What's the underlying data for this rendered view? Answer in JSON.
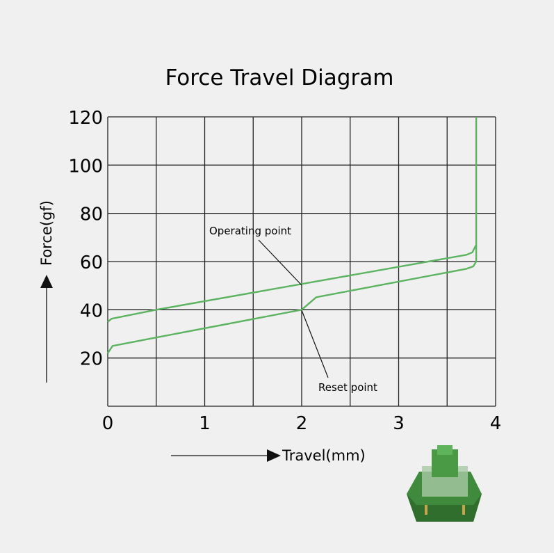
{
  "chart_data": {
    "type": "line",
    "title": "Force Travel Diagram",
    "xlabel": "Travel(mm)",
    "ylabel": "Force(gf)",
    "xlim": [
      0,
      4
    ],
    "ylim": [
      0,
      120
    ],
    "x_ticks": [
      0,
      1,
      2,
      3,
      4
    ],
    "y_ticks": [
      20,
      40,
      60,
      80,
      100,
      120
    ],
    "grid": true,
    "grid_x_step": 0.5,
    "grid_y_step": 20,
    "line_color": "#5cb360",
    "series": [
      {
        "points": [
          [
            0,
            35
          ],
          [
            0.04,
            36.3
          ],
          [
            0.5,
            40
          ],
          [
            3.7,
            62.8
          ],
          [
            3.76,
            63.8
          ],
          [
            3.8,
            67
          ],
          [
            3.8,
            120
          ]
        ]
      },
      {
        "points": [
          [
            0,
            22
          ],
          [
            0.05,
            25
          ],
          [
            0.5,
            28.5
          ],
          [
            2,
            40
          ],
          [
            2.15,
            45.2
          ],
          [
            3.7,
            57
          ],
          [
            3.77,
            58
          ],
          [
            3.8,
            60
          ],
          [
            3.8,
            67
          ]
        ]
      }
    ],
    "annotations": [
      {
        "text": "Operating point",
        "target": [
          2,
          51
        ]
      },
      {
        "text": "Reset point",
        "target": [
          2,
          40
        ]
      }
    ]
  }
}
